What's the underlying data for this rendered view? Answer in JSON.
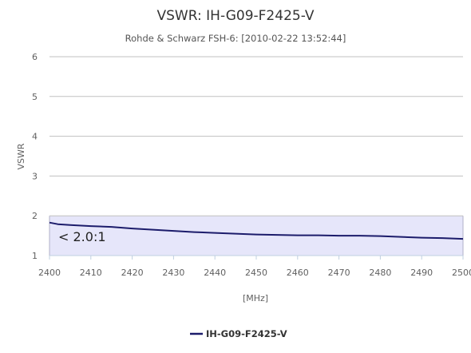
{
  "chart_data": {
    "type": "line",
    "title": "VSWR: IH-G09-F2425-V",
    "subtitle": "Rohde & Schwarz FSH-6: [2010-02-22 13:52:44]",
    "xlabel": "[MHz]",
    "ylabel": "VSWR",
    "xlim": [
      2400,
      2500
    ],
    "ylim": [
      1,
      6
    ],
    "x_ticks": [
      2400,
      2410,
      2420,
      2430,
      2440,
      2450,
      2460,
      2470,
      2480,
      2490,
      2500
    ],
    "y_ticks": [
      1,
      2,
      3,
      4,
      5,
      6
    ],
    "grid": true,
    "legend_position": "bottom-center",
    "band": {
      "from": 1,
      "to": 2,
      "label": "< 2.0:1",
      "color": "#e6e6fa"
    },
    "series": [
      {
        "name": "IH-G09-F2425-V",
        "color": "#1c1c6b",
        "x": [
          2400,
          2402,
          2405,
          2410,
          2415,
          2420,
          2425,
          2430,
          2435,
          2440,
          2445,
          2450,
          2455,
          2460,
          2465,
          2470,
          2475,
          2480,
          2485,
          2490,
          2495,
          2500
        ],
        "y": [
          1.83,
          1.79,
          1.77,
          1.74,
          1.72,
          1.68,
          1.65,
          1.62,
          1.59,
          1.57,
          1.55,
          1.53,
          1.52,
          1.51,
          1.51,
          1.5,
          1.5,
          1.49,
          1.47,
          1.45,
          1.44,
          1.42
        ]
      }
    ]
  }
}
